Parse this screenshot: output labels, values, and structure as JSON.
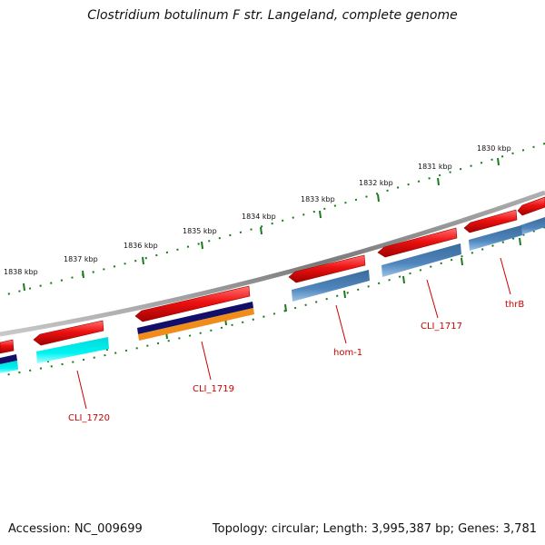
{
  "title": "Clostridium botulinum F str. Langeland, complete genome",
  "accession": "Accession: NC_009699",
  "summary": "Topology: circular; Length: 3,995,387 bp; Genes: 3,781",
  "colors": {
    "backbone": "#808080",
    "ticks": "#1a7a1a",
    "cds_red": "#ee1111",
    "cds_steel": "#4a7fb5",
    "cds_cyan": "#00eaea",
    "cds_navy": "#10106a",
    "cds_orange": "#f08c1a",
    "label": "#cc0000"
  },
  "kbp_labels": [
    "1830 kbp",
    "1831 kbp",
    "1832 kbp",
    "1833 kbp",
    "1834 kbp",
    "1835 kbp",
    "1836 kbp",
    "1837 kbp",
    "1838 kbp"
  ],
  "genes": [
    {
      "label": "thrB"
    },
    {
      "label": "CLI_1717"
    },
    {
      "label": "hom-1"
    },
    {
      "label": "CLI_1719"
    },
    {
      "label": "CLI_1720"
    }
  ]
}
